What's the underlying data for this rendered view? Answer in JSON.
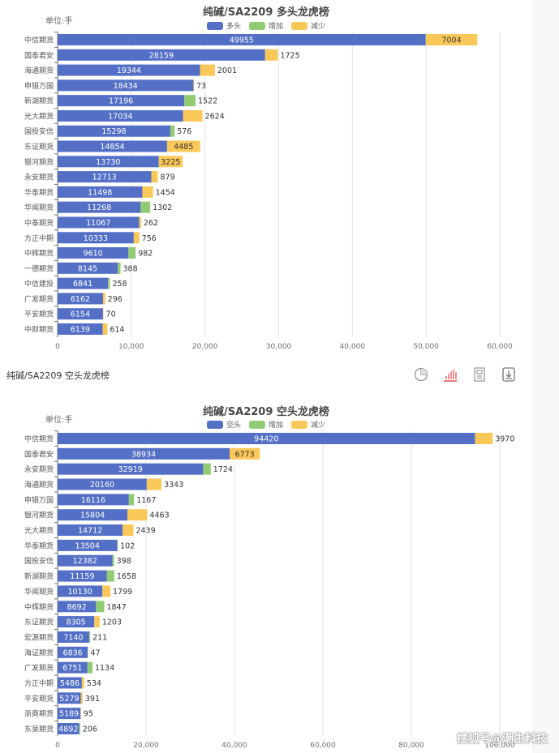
{
  "section_label": "纯碱/SA2209 空头龙虎榜",
  "toolbar": [
    "pie-chart-icon",
    "bar-chart-icon",
    "table-view-icon",
    "download-icon"
  ],
  "watermark": "搜狐号@潮生科技",
  "colors": {
    "main": "#5470c6",
    "increase": "#91cc75",
    "decrease": "#fac858"
  },
  "chart_data": [
    {
      "type": "bar",
      "orientation": "horizontal-stacked",
      "title": "纯碱/SA2209 多头龙虎榜",
      "unit": "单位:手",
      "legend": [
        "多头",
        "增加",
        "减少"
      ],
      "legend_position": "top",
      "grid": true,
      "xlim": [
        0,
        60000
      ],
      "xticks": [
        "0",
        "10,000",
        "20,000",
        "30,000",
        "40,000",
        "50,000",
        "60,000"
      ],
      "categories": [
        "中信期货",
        "国泰君安",
        "海通期货",
        "申银万国",
        "新湖期货",
        "光大期货",
        "国投安信",
        "东证期货",
        "银河期货",
        "永安期货",
        "华泰期货",
        "华闻期货",
        "中泰期货",
        "方正中期",
        "中辉期货",
        "一德期货",
        "中信建投",
        "广发期货",
        "平安期货",
        "中财期货"
      ],
      "values": [
        49955,
        28159,
        19344,
        18434,
        17196,
        17034,
        15298,
        14854,
        13730,
        12713,
        11498,
        11268,
        11067,
        10333,
        9610,
        8145,
        6841,
        6162,
        6154,
        6139
      ],
      "change": [
        7004,
        1725,
        2001,
        73,
        1522,
        2624,
        576,
        4485,
        3225,
        879,
        1454,
        1302,
        262,
        756,
        982,
        388,
        258,
        296,
        70,
        614
      ],
      "change_type": [
        "减少",
        "减少",
        "减少",
        "减少",
        "增加",
        "减少",
        "增加",
        "减少",
        "减少",
        "减少",
        "减少",
        "增加",
        "减少",
        "减少",
        "增加",
        "增加",
        "增加",
        "减少",
        "减少",
        "减少"
      ]
    },
    {
      "type": "bar",
      "orientation": "horizontal-stacked",
      "title": "纯碱/SA2209 空头龙虎榜",
      "unit": "单位:手",
      "legend": [
        "空头",
        "增加",
        "减少"
      ],
      "legend_position": "top",
      "grid": true,
      "xlim": [
        0,
        100000
      ],
      "xticks": [
        "0",
        "20,000",
        "40,000",
        "60,000",
        "80,000",
        "100,000"
      ],
      "categories": [
        "中信期货",
        "国泰君安",
        "永安期货",
        "海通期货",
        "申银万国",
        "银河期货",
        "光大期货",
        "华泰期货",
        "国投安信",
        "新湖期货",
        "华闻期货",
        "中辉期货",
        "东证期货",
        "宏源期货",
        "海证期货",
        "广发期货",
        "方正中期",
        "平安期货",
        "浙商期货",
        "东吴期货"
      ],
      "values": [
        94420,
        38934,
        32919,
        20160,
        16116,
        15804,
        14712,
        13504,
        12382,
        11159,
        10130,
        8692,
        8305,
        7140,
        6836,
        6751,
        5486,
        5279,
        5189,
        4892
      ],
      "change": [
        3970,
        6773,
        1724,
        3343,
        1167,
        4463,
        2439,
        102,
        398,
        1658,
        1799,
        1847,
        1203,
        211,
        47,
        1134,
        534,
        391,
        95,
        206
      ],
      "change_type": [
        "减少",
        "减少",
        "增加",
        "减少",
        "增加",
        "减少",
        "减少",
        "增加",
        "增加",
        "增加",
        "减少",
        "增加",
        "减少",
        "增加",
        "减少",
        "增加",
        "减少",
        "减少",
        "减少",
        "增加"
      ]
    }
  ]
}
